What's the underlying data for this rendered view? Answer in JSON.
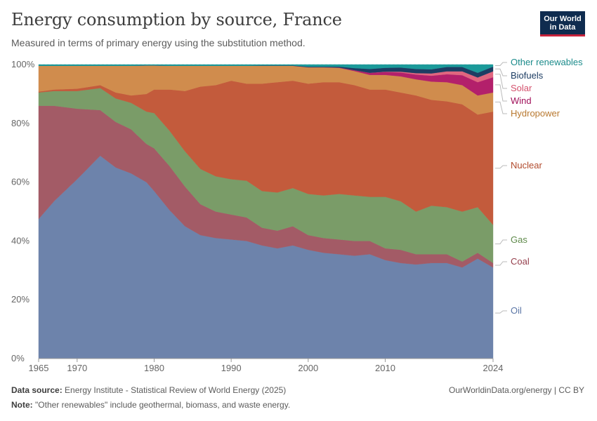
{
  "title": "Energy consumption by source, France",
  "subtitle": "Measured in terms of primary energy using the substitution method.",
  "logo": {
    "line1": "Our World",
    "line2": "in Data"
  },
  "footer": {
    "source_label": "Data source:",
    "source_text": "Energy Institute - Statistical Review of World Energy (2025)",
    "note_label": "Note:",
    "note_text": "\"Other renewables\" include geothermal, biomass, and waste energy.",
    "right_text": "OurWorldinData.org/energy | CC BY"
  },
  "colors": {
    "oil": "#6d83ab",
    "coal": "#a35b66",
    "gas": "#7a9c68",
    "nuclear": "#c35b3c",
    "hydropower": "#d08c4d",
    "wind": "#b3206b",
    "solar": "#e0667f",
    "biofuels": "#1d3d63",
    "other_renewables": "#1b9a9a"
  },
  "chart_data": {
    "type": "area",
    "stacked": true,
    "x": [
      1965,
      1967,
      1970,
      1973,
      1975,
      1977,
      1979,
      1980,
      1982,
      1984,
      1986,
      1988,
      1990,
      1992,
      1994,
      1996,
      1998,
      2000,
      2002,
      2004,
      2006,
      2008,
      2010,
      2012,
      2014,
      2016,
      2018,
      2020,
      2022,
      2024
    ],
    "series": [
      {
        "name": "Oil",
        "key": "oil",
        "values": [
          47.5,
          53.5,
          61.0,
          69.0,
          65.0,
          63.0,
          60.0,
          57.0,
          50.5,
          45.0,
          42.0,
          41.0,
          40.5,
          40.0,
          38.5,
          37.5,
          38.5,
          37.0,
          36.0,
          35.5,
          35.0,
          35.5,
          33.5,
          32.5,
          32.0,
          32.5,
          32.5,
          31.0,
          34.0,
          31.0
        ]
      },
      {
        "name": "Coal",
        "key": "coal",
        "values": [
          38.5,
          32.5,
          24.0,
          15.5,
          15.5,
          15.0,
          13.0,
          14.5,
          15.0,
          13.5,
          10.5,
          9.0,
          8.5,
          8.0,
          6.0,
          6.0,
          6.5,
          5.0,
          5.0,
          5.0,
          5.0,
          4.5,
          4.0,
          4.5,
          3.5,
          3.0,
          3.0,
          2.0,
          2.0,
          1.5
        ]
      },
      {
        "name": "Gas",
        "key": "gas",
        "values": [
          4.5,
          5.0,
          6.0,
          7.5,
          8.0,
          9.0,
          11.0,
          12.0,
          12.0,
          12.0,
          12.0,
          12.0,
          12.0,
          12.5,
          12.5,
          13.0,
          13.0,
          14.0,
          14.5,
          15.5,
          15.5,
          15.0,
          17.5,
          16.5,
          14.5,
          16.5,
          16.0,
          17.0,
          15.5,
          13.0
        ]
      },
      {
        "name": "Nuclear",
        "key": "nuclear",
        "values": [
          0.3,
          0.5,
          0.8,
          1.0,
          2.0,
          2.5,
          6.0,
          8.0,
          14.0,
          20.5,
          28.0,
          31.0,
          33.5,
          33.0,
          36.5,
          37.5,
          36.5,
          37.5,
          38.5,
          38.0,
          37.5,
          36.5,
          36.5,
          37.0,
          39.5,
          36.0,
          36.0,
          36.5,
          31.5,
          38.5
        ]
      },
      {
        "name": "Hydropower",
        "key": "hydropower",
        "values": [
          8.8,
          8.1,
          7.8,
          6.6,
          9.1,
          10.1,
          9.7,
          8.2,
          8.1,
          8.6,
          7.1,
          6.6,
          5.1,
          6.1,
          6.1,
          5.6,
          5.1,
          5.6,
          5.1,
          4.9,
          4.8,
          5.0,
          5.0,
          5.5,
          5.5,
          6.2,
          6.5,
          6.5,
          6.5,
          6.5
        ]
      },
      {
        "name": "Wind",
        "key": "wind",
        "values": [
          0,
          0,
          0,
          0,
          0,
          0,
          0,
          0,
          0,
          0,
          0,
          0,
          0,
          0,
          0,
          0,
          0,
          0,
          0,
          0.1,
          0.3,
          0.7,
          1.0,
          1.3,
          1.6,
          2.0,
          2.7,
          3.4,
          4.5,
          5.2
        ]
      },
      {
        "name": "Solar",
        "key": "solar",
        "values": [
          0,
          0,
          0,
          0,
          0,
          0,
          0,
          0,
          0,
          0,
          0,
          0,
          0,
          0,
          0,
          0,
          0,
          0,
          0,
          0,
          0,
          0,
          0.1,
          0.3,
          0.5,
          0.8,
          1.0,
          1.3,
          1.6,
          2.0
        ]
      },
      {
        "name": "Biofuels",
        "key": "biofuels",
        "values": [
          0,
          0,
          0,
          0,
          0,
          0,
          0,
          0,
          0,
          0,
          0,
          0,
          0,
          0,
          0.1,
          0.1,
          0.1,
          0.2,
          0.2,
          0.3,
          0.7,
          1.3,
          1.3,
          1.4,
          1.4,
          1.4,
          1.5,
          1.5,
          1.6,
          1.6
        ]
      },
      {
        "name": "Other renewables",
        "key": "other_renewables",
        "values": [
          0.4,
          0.4,
          0.4,
          0.4,
          0.4,
          0.4,
          0.3,
          0.3,
          0.4,
          0.4,
          0.4,
          0.4,
          0.4,
          0.4,
          0.3,
          0.3,
          0.3,
          0.7,
          0.7,
          0.7,
          1.2,
          1.5,
          1.1,
          1.0,
          1.5,
          1.6,
          0.8,
          0.8,
          2.8,
          0.7
        ]
      }
    ],
    "legend_labels": [
      "Other renewables",
      "Biofuels",
      "Solar",
      "Wind",
      "Hydropower",
      "Nuclear",
      "Gas",
      "Coal",
      "Oil"
    ],
    "x_ticks": [
      1965,
      1970,
      1980,
      1990,
      2000,
      2010,
      2024
    ],
    "y_ticks": [
      "0%",
      "20%",
      "40%",
      "60%",
      "80%",
      "100%"
    ],
    "y_tick_values": [
      0,
      20,
      40,
      60,
      80,
      100
    ],
    "xlim": [
      1965,
      2024
    ],
    "ylim": [
      0,
      100
    ],
    "grid": true,
    "legend": "right"
  }
}
